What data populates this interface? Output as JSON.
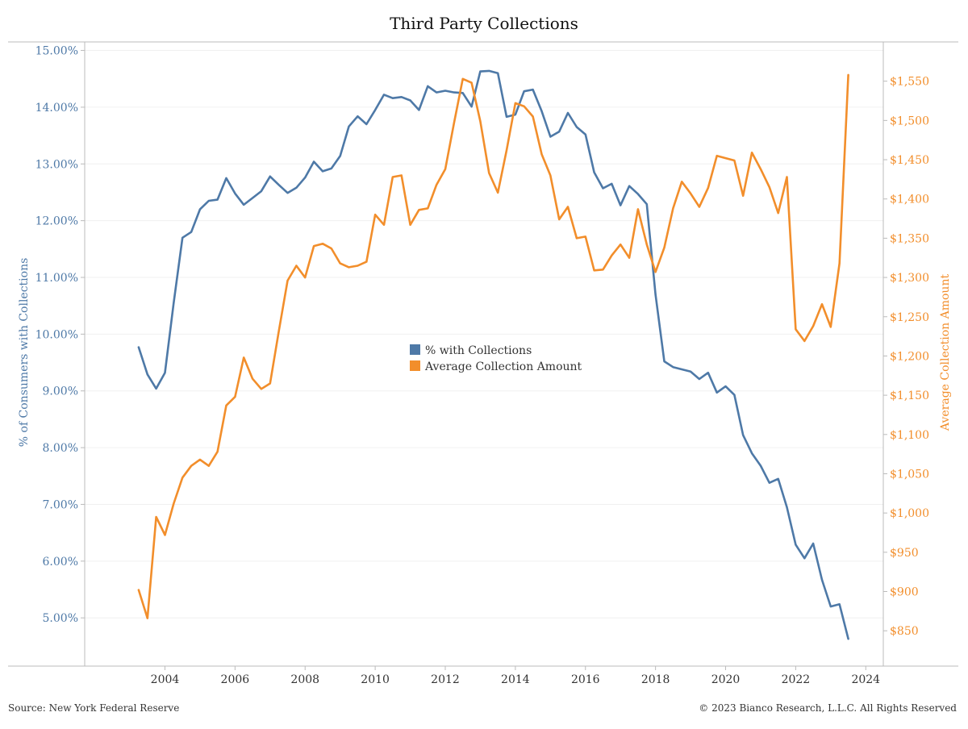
{
  "colors": {
    "collections_pct": "#4e79a7",
    "avg_amount": "#f28e2b",
    "axis": "#bbbbbb",
    "grid": "#f0f0f0"
  },
  "footer": {
    "source": "Source: New York Federal Reserve",
    "copyright": "© 2023 Bianco Research, L.L.C. All Rights Reserved"
  },
  "chart_data": {
    "type": "line",
    "title": "Third Party Collections",
    "ylabel_left": "% of Consumers with Collections",
    "ylabel_right": "Average Collection Amount",
    "ylim_left": [
      0.0415,
      0.1515
    ],
    "ylim_right": [
      805,
      1600
    ],
    "xlim": [
      2001.71,
      2024.5
    ],
    "x_ticks": [
      2004,
      2006,
      2008,
      2010,
      2012,
      2014,
      2016,
      2018,
      2020,
      2022,
      2024
    ],
    "y_ticks_left": [
      "5.00%",
      "6.00%",
      "7.00%",
      "8.00%",
      "9.00%",
      "10.00%",
      "11.00%",
      "12.00%",
      "13.00%",
      "14.00%",
      "15.00%"
    ],
    "y_ticks_left_values": [
      0.05,
      0.06,
      0.07,
      0.08,
      0.09,
      0.1,
      0.11,
      0.12,
      0.13,
      0.14,
      0.15
    ],
    "y_ticks_right": [
      "$850",
      "$900",
      "$950",
      "$1,000",
      "$1,050",
      "$1,100",
      "$1,150",
      "$1,200",
      "$1,250",
      "$1,300",
      "$1,350",
      "$1,400",
      "$1,450",
      "$1,500",
      "$1,550"
    ],
    "y_ticks_right_values": [
      850,
      900,
      950,
      1000,
      1050,
      1100,
      1150,
      1200,
      1250,
      1300,
      1350,
      1400,
      1450,
      1500,
      1550
    ],
    "legend_position": "center",
    "grid": true,
    "series": [
      {
        "name": "% with Collections",
        "axis": "left",
        "x": [
          2003.25,
          2003.5,
          2003.75,
          2004.0,
          2004.25,
          2004.5,
          2004.75,
          2005.0,
          2005.25,
          2005.5,
          2005.75,
          2006.0,
          2006.25,
          2006.5,
          2006.75,
          2007.0,
          2007.25,
          2007.5,
          2007.75,
          2008.0,
          2008.25,
          2008.5,
          2008.75,
          2009.0,
          2009.25,
          2009.5,
          2009.75,
          2010.0,
          2010.25,
          2010.5,
          2010.75,
          2011.0,
          2011.25,
          2011.5,
          2011.75,
          2012.0,
          2012.25,
          2012.5,
          2012.75,
          2013.0,
          2013.25,
          2013.5,
          2013.75,
          2014.0,
          2014.25,
          2014.5,
          2014.75,
          2015.0,
          2015.25,
          2015.5,
          2015.75,
          2016.0,
          2016.25,
          2016.5,
          2016.75,
          2017.0,
          2017.25,
          2017.5,
          2017.75,
          2018.0,
          2018.25,
          2018.5,
          2018.75,
          2019.0,
          2019.25,
          2019.5,
          2019.75,
          2020.0,
          2020.25,
          2020.5,
          2020.75,
          2021.0,
          2021.25,
          2021.5,
          2021.75,
          2022.0,
          2022.25,
          2022.5,
          2022.75,
          2023.0,
          2023.25,
          2023.5
        ],
        "values": [
          0.0977,
          0.0929,
          0.0904,
          0.0932,
          0.1055,
          0.117,
          0.118,
          0.122,
          0.1235,
          0.1237,
          0.1275,
          0.1248,
          0.1228,
          0.124,
          0.1252,
          0.1278,
          0.1263,
          0.1249,
          0.1258,
          0.1276,
          0.1304,
          0.1287,
          0.1292,
          0.1314,
          0.1366,
          0.1384,
          0.137,
          0.1395,
          0.1422,
          0.1416,
          0.1418,
          0.1412,
          0.1395,
          0.1437,
          0.1426,
          0.1429,
          0.1426,
          0.1425,
          0.1401,
          0.1463,
          0.1464,
          0.146,
          0.1383,
          0.1387,
          0.1428,
          0.1431,
          0.1393,
          0.1348,
          0.1357,
          0.139,
          0.1365,
          0.1352,
          0.1285,
          0.1257,
          0.1265,
          0.1227,
          0.1261,
          0.1247,
          0.1229,
          0.107,
          0.0952,
          0.0942,
          0.0938,
          0.0934,
          0.0921,
          0.0932,
          0.0897,
          0.0908,
          0.0893,
          0.0822,
          0.079,
          0.0768,
          0.0738,
          0.0745,
          0.0695,
          0.0629,
          0.0605,
          0.0631,
          0.0567,
          0.052,
          0.0524,
          0.0463
        ]
      },
      {
        "name": "Average Collection Amount",
        "axis": "right",
        "x": [
          2003.25,
          2003.5,
          2003.75,
          2004.0,
          2004.25,
          2004.5,
          2004.75,
          2005.0,
          2005.25,
          2005.5,
          2005.75,
          2006.0,
          2006.25,
          2006.5,
          2006.75,
          2007.0,
          2007.25,
          2007.5,
          2007.75,
          2008.0,
          2008.25,
          2008.5,
          2008.75,
          2009.0,
          2009.25,
          2009.5,
          2009.75,
          2010.0,
          2010.25,
          2010.5,
          2010.75,
          2011.0,
          2011.25,
          2011.5,
          2011.75,
          2012.0,
          2012.25,
          2012.5,
          2012.75,
          2013.0,
          2013.25,
          2013.5,
          2013.75,
          2014.0,
          2014.25,
          2014.5,
          2014.75,
          2015.0,
          2015.25,
          2015.5,
          2015.75,
          2016.0,
          2016.25,
          2016.5,
          2016.75,
          2017.0,
          2017.25,
          2017.5,
          2017.75,
          2018.0,
          2018.25,
          2018.5,
          2018.75,
          2019.0,
          2019.25,
          2019.5,
          2019.75,
          2020.0,
          2020.25,
          2020.5,
          2020.75,
          2021.0,
          2021.25,
          2021.5,
          2021.75,
          2022.0,
          2022.25,
          2022.5,
          2022.75,
          2023.0,
          2023.25,
          2023.5
        ],
        "values": [
          902,
          866,
          995,
          972,
          1012,
          1045,
          1060,
          1068,
          1060,
          1078,
          1137,
          1148,
          1198,
          1171,
          1158,
          1165,
          1232,
          1296,
          1315,
          1300,
          1340,
          1343,
          1337,
          1318,
          1313,
          1315,
          1320,
          1380,
          1367,
          1428,
          1430,
          1367,
          1386,
          1388,
          1418,
          1438,
          1497,
          1553,
          1548,
          1499,
          1433,
          1408,
          1462,
          1522,
          1518,
          1505,
          1457,
          1430,
          1374,
          1390,
          1350,
          1352,
          1309,
          1310,
          1328,
          1342,
          1325,
          1387,
          1342,
          1307,
          1338,
          1388,
          1422,
          1407,
          1390,
          1414,
          1455,
          1452,
          1449,
          1404,
          1459,
          1438,
          1415,
          1382,
          1428,
          1234,
          1219,
          1238,
          1266,
          1237,
          1318,
          1558
        ]
      }
    ]
  }
}
